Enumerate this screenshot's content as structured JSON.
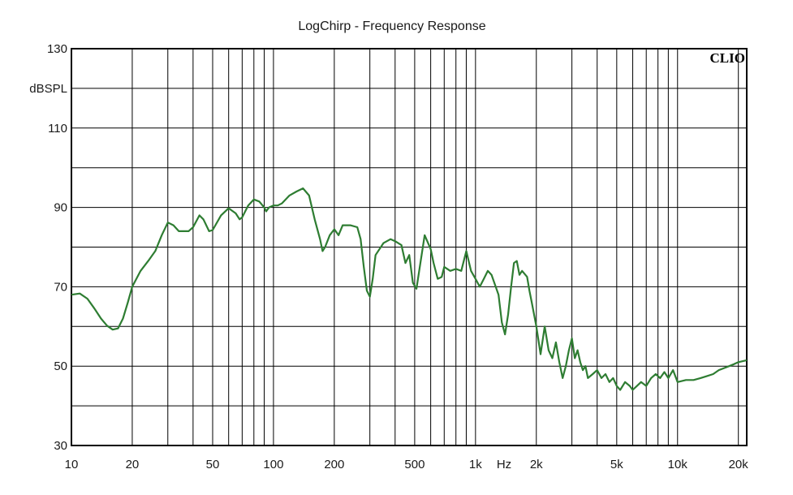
{
  "chart_data": {
    "type": "line",
    "title": "LogChirp - Frequency Response",
    "ylabel": "dBSPL",
    "xunit": "Hz",
    "brand": "CLIO",
    "x_scale": "log",
    "xlim": [
      10,
      22000
    ],
    "ylim": [
      30,
      130
    ],
    "grid": true,
    "x_tick_labels": [
      {
        "value": 10,
        "label": "10"
      },
      {
        "value": 20,
        "label": "20"
      },
      {
        "value": 50,
        "label": "50"
      },
      {
        "value": 100,
        "label": "100"
      },
      {
        "value": 200,
        "label": "200"
      },
      {
        "value": 500,
        "label": "500"
      },
      {
        "value": 1000,
        "label": "1k"
      },
      {
        "value": 2000,
        "label": "2k"
      },
      {
        "value": 5000,
        "label": "5k"
      },
      {
        "value": 10000,
        "label": "10k"
      },
      {
        "value": 20000,
        "label": "20k"
      }
    ],
    "y_tick_labels": [
      {
        "value": 130,
        "label": "130"
      },
      {
        "value": 110,
        "label": "110"
      },
      {
        "value": 90,
        "label": "90"
      },
      {
        "value": 70,
        "label": "70"
      },
      {
        "value": 50,
        "label": "50"
      },
      {
        "value": 30,
        "label": "30"
      }
    ],
    "series": [
      {
        "color": "#2e7d32",
        "points": [
          [
            10,
            68
          ],
          [
            11,
            68.3
          ],
          [
            12,
            67
          ],
          [
            13,
            64.5
          ],
          [
            14,
            62
          ],
          [
            15,
            60.2
          ],
          [
            16,
            59.2
          ],
          [
            17,
            59.5
          ],
          [
            18,
            62
          ],
          [
            19,
            66
          ],
          [
            20,
            70
          ],
          [
            22,
            74
          ],
          [
            24,
            76.5
          ],
          [
            26,
            79
          ],
          [
            28,
            83
          ],
          [
            30,
            86.2
          ],
          [
            32,
            85.5
          ],
          [
            34,
            84
          ],
          [
            38,
            84
          ],
          [
            40,
            85
          ],
          [
            43,
            88
          ],
          [
            45,
            87
          ],
          [
            48,
            84
          ],
          [
            50,
            84.3
          ],
          [
            55,
            88
          ],
          [
            60,
            89.8
          ],
          [
            65,
            88.5
          ],
          [
            68,
            87
          ],
          [
            70,
            87.5
          ],
          [
            75,
            90.5
          ],
          [
            80,
            92
          ],
          [
            85,
            91.5
          ],
          [
            90,
            90
          ],
          [
            92,
            89
          ],
          [
            95,
            90
          ],
          [
            100,
            90.5
          ],
          [
            105,
            90.5
          ],
          [
            110,
            91
          ],
          [
            120,
            93
          ],
          [
            130,
            94
          ],
          [
            140,
            94.8
          ],
          [
            150,
            93
          ],
          [
            160,
            87
          ],
          [
            170,
            82
          ],
          [
            175,
            79
          ],
          [
            180,
            80
          ],
          [
            190,
            83
          ],
          [
            200,
            84.5
          ],
          [
            210,
            83
          ],
          [
            220,
            85.5
          ],
          [
            240,
            85.5
          ],
          [
            260,
            85
          ],
          [
            270,
            82
          ],
          [
            280,
            75
          ],
          [
            290,
            69
          ],
          [
            300,
            67.5
          ],
          [
            310,
            72
          ],
          [
            320,
            78
          ],
          [
            350,
            81
          ],
          [
            380,
            82
          ],
          [
            400,
            81.5
          ],
          [
            430,
            80.5
          ],
          [
            450,
            76
          ],
          [
            470,
            78
          ],
          [
            490,
            71
          ],
          [
            510,
            69.5
          ],
          [
            530,
            75
          ],
          [
            560,
            83
          ],
          [
            600,
            79.5
          ],
          [
            620,
            76
          ],
          [
            650,
            72
          ],
          [
            680,
            72.5
          ],
          [
            700,
            75
          ],
          [
            750,
            74
          ],
          [
            800,
            74.5
          ],
          [
            850,
            74
          ],
          [
            880,
            77
          ],
          [
            900,
            79
          ],
          [
            950,
            74
          ],
          [
            1000,
            72
          ],
          [
            1050,
            70
          ],
          [
            1100,
            72
          ],
          [
            1150,
            74
          ],
          [
            1200,
            73
          ],
          [
            1300,
            68
          ],
          [
            1350,
            61
          ],
          [
            1400,
            58
          ],
          [
            1450,
            63
          ],
          [
            1500,
            70
          ],
          [
            1550,
            76
          ],
          [
            1600,
            76.5
          ],
          [
            1650,
            73
          ],
          [
            1700,
            74
          ],
          [
            1800,
            72.5
          ],
          [
            1850,
            69
          ],
          [
            1900,
            66
          ],
          [
            2000,
            60
          ],
          [
            2100,
            53
          ],
          [
            2200,
            60
          ],
          [
            2300,
            54
          ],
          [
            2400,
            52
          ],
          [
            2500,
            56
          ],
          [
            2600,
            51
          ],
          [
            2700,
            47
          ],
          [
            2800,
            50
          ],
          [
            2900,
            54
          ],
          [
            3000,
            57
          ],
          [
            3100,
            52
          ],
          [
            3200,
            54
          ],
          [
            3300,
            51
          ],
          [
            3400,
            49
          ],
          [
            3500,
            50
          ],
          [
            3600,
            47
          ],
          [
            3800,
            48
          ],
          [
            4000,
            49
          ],
          [
            4200,
            47
          ],
          [
            4400,
            48
          ],
          [
            4600,
            46
          ],
          [
            4800,
            47
          ],
          [
            5000,
            45
          ],
          [
            5200,
            44
          ],
          [
            5500,
            46
          ],
          [
            5800,
            45
          ],
          [
            6000,
            44
          ],
          [
            6300,
            45
          ],
          [
            6600,
            46
          ],
          [
            7000,
            45
          ],
          [
            7400,
            47
          ],
          [
            7800,
            48
          ],
          [
            8200,
            47
          ],
          [
            8600,
            48.5
          ],
          [
            9000,
            47
          ],
          [
            9500,
            49
          ],
          [
            10000,
            46
          ],
          [
            11000,
            46.5
          ],
          [
            12000,
            46.5
          ],
          [
            13000,
            47
          ],
          [
            14000,
            47.5
          ],
          [
            15000,
            48
          ],
          [
            16000,
            49
          ],
          [
            17000,
            49.5
          ],
          [
            18000,
            50
          ],
          [
            19000,
            50.5
          ],
          [
            20000,
            51
          ],
          [
            22000,
            51.5
          ]
        ]
      }
    ]
  }
}
